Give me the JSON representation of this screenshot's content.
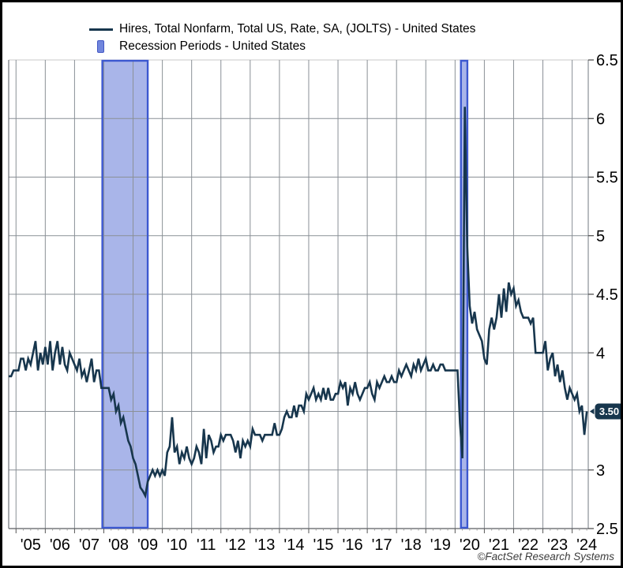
{
  "legend": {
    "series_label": "Hires, Total Nonfarm, Total US, Rate, SA, (JOLTS) - United States",
    "recession_label": "Recession Periods - United States"
  },
  "footer": {
    "copyright": "©FactSet Research Systems"
  },
  "colors": {
    "line": "#17364d",
    "recession_fill": "#a9b5e9",
    "recession_border": "#3c58d0",
    "grid": "#8a9096",
    "plot_border_top": "#c8c8c8",
    "plot_border": "#8a9096",
    "axis_text": "#000000",
    "badge_bg": "#17364d",
    "badge_text": "#ffffff"
  },
  "chart_data": {
    "type": "line",
    "title": "Hires, Total Nonfarm, Total US, Rate, SA, (JOLTS) - United States",
    "legend_position": "top-left",
    "grid": true,
    "y_axis": {
      "side": "right",
      "min": 2.5,
      "max": 6.5,
      "ticks": [
        6.5,
        6,
        5.5,
        5,
        4.5,
        4,
        3.5,
        3,
        2.5
      ],
      "tick_labels": [
        "6.5",
        "6",
        "5.5",
        "5",
        "4.5",
        "4",
        "3.5",
        "3",
        "2.5"
      ]
    },
    "x_axis": {
      "min": 2004.75,
      "max": 2024.55,
      "year_ticks": [
        2005,
        2006,
        2007,
        2008,
        2009,
        2010,
        2011,
        2012,
        2013,
        2014,
        2015,
        2016,
        2017,
        2018,
        2019,
        2020,
        2021,
        2022,
        2023,
        2024
      ],
      "tick_labels": [
        "'05",
        "'06",
        "'07",
        "'08",
        "'09",
        "'10",
        "'11",
        "'12",
        "'13",
        "'14",
        "'15",
        "'16",
        "'17",
        "'18",
        "'19",
        "'20",
        "'21",
        "'22",
        "'23",
        "'24"
      ],
      "minor_ticks_per_year": 3
    },
    "recessions": [
      {
        "name": "2008-2009 recession",
        "start": 2007.95,
        "end": 2009.5
      },
      {
        "name": "2020 recession",
        "start": 2020.2,
        "end": 2020.42
      }
    ],
    "last_value": 3.5,
    "last_value_label": "3.50",
    "series": [
      {
        "name": "Hires, Total Nonfarm, Total US, Rate, SA, (JOLTS) - United States",
        "frequency": "monthly",
        "start_year": 2004,
        "start_month": 10,
        "values": [
          3.8,
          3.8,
          3.85,
          3.85,
          3.85,
          3.95,
          3.95,
          3.85,
          3.95,
          3.9,
          4.0,
          4.1,
          3.85,
          4.0,
          3.9,
          4.05,
          3.9,
          4.1,
          3.85,
          4.0,
          4.1,
          3.9,
          4.05,
          3.9,
          3.85,
          4.0,
          3.95,
          3.9,
          3.85,
          3.95,
          3.8,
          3.85,
          3.75,
          3.85,
          3.95,
          3.75,
          3.85,
          3.85,
          3.7,
          3.7,
          3.7,
          3.7,
          3.6,
          3.65,
          3.5,
          3.55,
          3.4,
          3.45,
          3.35,
          3.25,
          3.2,
          3.1,
          3.05,
          2.95,
          2.85,
          2.82,
          2.78,
          2.9,
          2.95,
          3.0,
          2.95,
          3.0,
          2.95,
          3.0,
          2.95,
          3.15,
          3.2,
          3.45,
          3.15,
          3.2,
          3.05,
          3.15,
          3.1,
          3.2,
          3.1,
          3.05,
          3.1,
          3.2,
          3.15,
          3.05,
          3.35,
          3.1,
          3.3,
          3.25,
          3.15,
          3.2,
          3.2,
          3.3,
          3.25,
          3.3,
          3.3,
          3.3,
          3.25,
          3.15,
          3.25,
          3.1,
          3.25,
          3.2,
          3.25,
          3.2,
          3.35,
          3.3,
          3.3,
          3.3,
          3.25,
          3.3,
          3.3,
          3.3,
          3.3,
          3.4,
          3.3,
          3.3,
          3.35,
          3.45,
          3.5,
          3.45,
          3.45,
          3.55,
          3.45,
          3.55,
          3.55,
          3.5,
          3.65,
          3.6,
          3.65,
          3.7,
          3.6,
          3.65,
          3.6,
          3.7,
          3.6,
          3.7,
          3.6,
          3.6,
          3.65,
          3.65,
          3.75,
          3.7,
          3.75,
          3.55,
          3.7,
          3.65,
          3.75,
          3.65,
          3.6,
          3.65,
          3.7,
          3.7,
          3.75,
          3.65,
          3.6,
          3.75,
          3.7,
          3.75,
          3.8,
          3.75,
          3.75,
          3.8,
          3.75,
          3.75,
          3.85,
          3.8,
          3.85,
          3.9,
          3.85,
          3.8,
          3.9,
          3.85,
          3.95,
          3.85,
          3.9,
          3.95,
          3.85,
          3.85,
          3.9,
          3.85,
          3.85,
          3.9,
          3.9,
          3.85,
          3.85,
          3.85,
          3.85,
          3.85,
          3.85,
          3.4,
          3.1,
          6.1,
          4.9,
          4.4,
          4.25,
          4.35,
          4.2,
          4.15,
          4.1,
          3.95,
          3.9,
          4.2,
          4.3,
          4.2,
          4.3,
          4.5,
          4.3,
          4.55,
          4.35,
          4.6,
          4.5,
          4.55,
          4.4,
          4.45,
          4.35,
          4.3,
          4.3,
          4.3,
          4.25,
          4.3,
          4.0,
          4.0,
          4.0,
          4.0,
          4.1,
          3.85,
          3.95,
          4.0,
          3.8,
          3.9,
          3.75,
          3.85,
          3.7,
          3.6,
          3.7,
          3.65,
          3.6,
          3.65,
          3.5,
          3.55,
          3.3,
          3.5
        ]
      }
    ]
  }
}
